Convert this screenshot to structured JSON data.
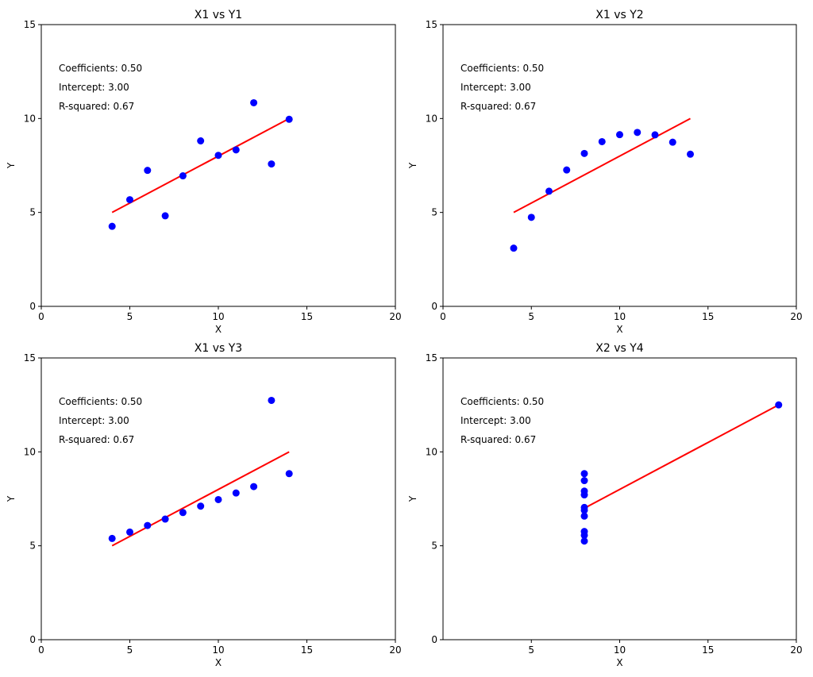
{
  "colors": {
    "points": "#0000ff",
    "fit_line": "#ff0000"
  },
  "chart_data": [
    {
      "type": "scatter",
      "title": "X1 vs Y1",
      "xlabel": "X",
      "ylabel": "Y",
      "xlim": [
        0,
        20
      ],
      "ylim": [
        0,
        15
      ],
      "xticks": [
        "0",
        "5",
        "10",
        "15",
        "20"
      ],
      "yticks": [
        "0",
        "5",
        "10",
        "15"
      ],
      "x": [
        10,
        8,
        13,
        9,
        11,
        14,
        6,
        4,
        12,
        7,
        5
      ],
      "y": [
        8.04,
        6.95,
        7.58,
        8.81,
        8.33,
        9.96,
        7.24,
        4.26,
        10.84,
        4.82,
        5.68
      ],
      "fit_line": {
        "x": [
          4,
          14
        ],
        "y": [
          5.0,
          10.0
        ]
      },
      "annotations": [
        "Coefficients: 0.50",
        "Intercept: 3.00",
        "R-squared: 0.67"
      ]
    },
    {
      "type": "scatter",
      "title": "X1 vs Y2",
      "xlabel": "X",
      "ylabel": "Y",
      "xlim": [
        0,
        20
      ],
      "ylim": [
        0,
        15
      ],
      "xticks": [
        "0",
        "5",
        "10",
        "15",
        "20"
      ],
      "yticks": [
        "0",
        "5",
        "10",
        "15"
      ],
      "x": [
        10,
        8,
        13,
        9,
        11,
        14,
        6,
        4,
        12,
        7,
        5
      ],
      "y": [
        9.14,
        8.14,
        8.74,
        8.77,
        9.26,
        8.1,
        6.13,
        3.1,
        9.13,
        7.26,
        4.74
      ],
      "fit_line": {
        "x": [
          4,
          14
        ],
        "y": [
          5.0,
          10.0
        ]
      },
      "annotations": [
        "Coefficients: 0.50",
        "Intercept: 3.00",
        "R-squared: 0.67"
      ]
    },
    {
      "type": "scatter",
      "title": "X1 vs Y3",
      "xlabel": "X",
      "ylabel": "Y",
      "xlim": [
        0,
        20
      ],
      "ylim": [
        0,
        15
      ],
      "xticks": [
        "0",
        "5",
        "10",
        "15",
        "20"
      ],
      "yticks": [
        "0",
        "5",
        "10",
        "15"
      ],
      "x": [
        10,
        8,
        13,
        9,
        11,
        14,
        6,
        4,
        12,
        7,
        5
      ],
      "y": [
        7.46,
        6.77,
        12.74,
        7.11,
        7.81,
        8.84,
        6.08,
        5.39,
        8.15,
        6.42,
        5.73
      ],
      "fit_line": {
        "x": [
          4,
          14
        ],
        "y": [
          5.0,
          10.0
        ]
      },
      "annotations": [
        "Coefficients: 0.50",
        "Intercept: 3.00",
        "R-squared: 0.67"
      ]
    },
    {
      "type": "scatter",
      "title": "X2 vs Y4",
      "xlabel": "X",
      "ylabel": "Y",
      "xlim": [
        0,
        20
      ],
      "ylim": [
        0,
        15
      ],
      "xticks": [
        "5",
        "10",
        "15",
        "20"
      ],
      "yticks": [
        "0",
        "5",
        "10",
        "15"
      ],
      "x": [
        8,
        8,
        8,
        8,
        8,
        8,
        8,
        19,
        8,
        8,
        8
      ],
      "y": [
        6.58,
        5.76,
        7.71,
        8.84,
        8.47,
        7.04,
        5.25,
        12.5,
        5.56,
        7.91,
        6.89
      ],
      "fit_line": {
        "x": [
          8,
          19
        ],
        "y": [
          7.0,
          12.5
        ]
      },
      "annotations": [
        "Coefficients: 0.50",
        "Intercept: 3.00",
        "R-squared: 0.67"
      ]
    }
  ]
}
